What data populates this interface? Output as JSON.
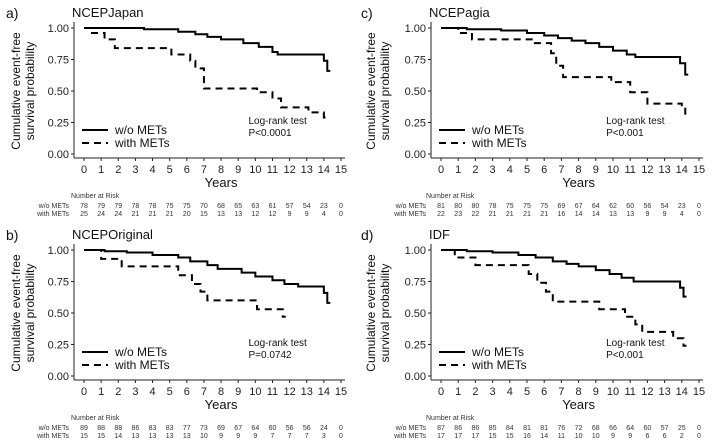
{
  "figure": {
    "x_axis_label": "Years",
    "y_axis_label_line1": "Cumulative event-free",
    "y_axis_label_line2": "survival probability",
    "risk_heading": "Number at Risk",
    "risk_row_labels": [
      "w/o METs",
      "with METs"
    ],
    "logrank_label": "Log-rank test",
    "legend": [
      {
        "label": "w/o METs",
        "style": "solid"
      },
      {
        "label": "with METs",
        "style": "dashed"
      }
    ]
  },
  "chart_data": [
    {
      "type": "line",
      "panel_label": "a)",
      "title": "NCEPJapan",
      "xlim": [
        0,
        15
      ],
      "ylim": [
        0,
        1
      ],
      "x_ticks": [
        0,
        1,
        2,
        3,
        4,
        5,
        6,
        7,
        8,
        9,
        10,
        11,
        12,
        13,
        14,
        15
      ],
      "y_ticks": [
        "0.00",
        "0.25",
        "0.50",
        "0.75",
        "1.00"
      ],
      "pvalue": "P<0.0001",
      "series": [
        {
          "name": "w/o METs",
          "style": "solid",
          "steps": [
            [
              0,
              1.0
            ],
            [
              3.5,
              0.99
            ],
            [
              5.5,
              0.97
            ],
            [
              6.5,
              0.95
            ],
            [
              7.2,
              0.93
            ],
            [
              8.0,
              0.91
            ],
            [
              9.3,
              0.88
            ],
            [
              10.2,
              0.85
            ],
            [
              11.0,
              0.81
            ],
            [
              11.3,
              0.79
            ],
            [
              14.0,
              0.74
            ],
            [
              14.2,
              0.66
            ]
          ]
        },
        {
          "name": "with METs",
          "style": "dashed",
          "steps": [
            [
              0,
              1.0
            ],
            [
              0.4,
              0.96
            ],
            [
              1.2,
              0.91
            ],
            [
              1.8,
              0.84
            ],
            [
              5.1,
              0.79
            ],
            [
              6.2,
              0.74
            ],
            [
              6.5,
              0.68
            ],
            [
              7.0,
              0.52
            ],
            [
              10.1,
              0.49
            ],
            [
              11.0,
              0.44
            ],
            [
              11.5,
              0.37
            ],
            [
              13.1,
              0.33
            ],
            [
              14.0,
              0.29
            ]
          ]
        }
      ],
      "risk": {
        "w/o METs": [
          "78",
          "79",
          "79",
          "78",
          "78",
          "75",
          "75",
          "70",
          "68",
          "65",
          "63",
          "61",
          "57",
          "54",
          "23",
          "0"
        ],
        "with METs": [
          "25",
          "24",
          "24",
          "21",
          "21",
          "21",
          "20",
          "15",
          "13",
          "13",
          "12",
          "12",
          "9",
          "9",
          "4",
          "0"
        ]
      }
    },
    {
      "type": "line",
      "panel_label": "c)",
      "title": "NCEPagia",
      "xlim": [
        0,
        15
      ],
      "ylim": [
        0,
        1
      ],
      "x_ticks": [
        0,
        1,
        2,
        3,
        4,
        5,
        6,
        7,
        8,
        9,
        10,
        11,
        12,
        13,
        14,
        15
      ],
      "y_ticks": [
        "0.00",
        "0.25",
        "0.50",
        "0.75",
        "1.00"
      ],
      "pvalue": "P<0.001",
      "series": [
        {
          "name": "w/o METs",
          "style": "solid",
          "steps": [
            [
              0,
              1.0
            ],
            [
              1.5,
              0.99
            ],
            [
              3.5,
              0.98
            ],
            [
              5.0,
              0.96
            ],
            [
              6.0,
              0.94
            ],
            [
              6.8,
              0.92
            ],
            [
              7.6,
              0.9
            ],
            [
              8.4,
              0.88
            ],
            [
              9.2,
              0.85
            ],
            [
              10.0,
              0.82
            ],
            [
              10.8,
              0.79
            ],
            [
              11.3,
              0.77
            ],
            [
              13.9,
              0.72
            ],
            [
              14.2,
              0.63
            ]
          ]
        },
        {
          "name": "with METs",
          "style": "dashed",
          "steps": [
            [
              0,
              1.0
            ],
            [
              1.0,
              0.96
            ],
            [
              1.8,
              0.91
            ],
            [
              5.4,
              0.88
            ],
            [
              6.4,
              0.8
            ],
            [
              6.7,
              0.7
            ],
            [
              7.1,
              0.61
            ],
            [
              9.9,
              0.57
            ],
            [
              11.0,
              0.49
            ],
            [
              12.0,
              0.4
            ],
            [
              14.0,
              0.36
            ],
            [
              14.2,
              0.32
            ]
          ]
        }
      ],
      "risk": {
        "w/o METs": [
          "81",
          "80",
          "80",
          "78",
          "75",
          "75",
          "75",
          "69",
          "67",
          "64",
          "62",
          "60",
          "56",
          "54",
          "23",
          "0"
        ],
        "with METs": [
          "22",
          "23",
          "22",
          "21",
          "21",
          "21",
          "21",
          "16",
          "14",
          "14",
          "13",
          "13",
          "9",
          "9",
          "4",
          "0"
        ]
      }
    },
    {
      "type": "line",
      "panel_label": "b)",
      "title": "NCEPOriginal",
      "xlim": [
        0,
        15
      ],
      "ylim": [
        0,
        1
      ],
      "x_ticks": [
        0,
        1,
        2,
        3,
        4,
        5,
        6,
        7,
        8,
        9,
        10,
        11,
        12,
        13,
        14,
        15
      ],
      "y_ticks": [
        "0.00",
        "0.25",
        "0.50",
        "0.75",
        "1.00"
      ],
      "pvalue": "P=0.0742",
      "series": [
        {
          "name": "w/o METs",
          "style": "solid",
          "steps": [
            [
              0,
              1.0
            ],
            [
              1.2,
              0.99
            ],
            [
              2.5,
              0.98
            ],
            [
              4.0,
              0.96
            ],
            [
              5.5,
              0.94
            ],
            [
              6.2,
              0.91
            ],
            [
              7.2,
              0.88
            ],
            [
              7.8,
              0.85
            ],
            [
              9.2,
              0.82
            ],
            [
              10.0,
              0.79
            ],
            [
              11.0,
              0.76
            ],
            [
              11.7,
              0.73
            ],
            [
              12.5,
              0.71
            ],
            [
              14.0,
              0.66
            ],
            [
              14.2,
              0.58
            ]
          ]
        },
        {
          "name": "with METs",
          "style": "dashed",
          "steps": [
            [
              0,
              1.0
            ],
            [
              1.0,
              0.93
            ],
            [
              2.2,
              0.87
            ],
            [
              5.5,
              0.8
            ],
            [
              6.3,
              0.73
            ],
            [
              6.8,
              0.67
            ],
            [
              7.2,
              0.6
            ],
            [
              10.1,
              0.53
            ],
            [
              11.6,
              0.47
            ]
          ]
        }
      ],
      "risk": {
        "w/o METs": [
          "89",
          "88",
          "88",
          "86",
          "83",
          "83",
          "77",
          "73",
          "69",
          "67",
          "64",
          "60",
          "56",
          "56",
          "24",
          "0"
        ],
        "with METs": [
          "15",
          "15",
          "14",
          "13",
          "13",
          "13",
          "13",
          "10",
          "9",
          "9",
          "9",
          "7",
          "7",
          "7",
          "3",
          "0"
        ]
      }
    },
    {
      "type": "line",
      "panel_label": "d)",
      "title": "IDF",
      "xlim": [
        0,
        15
      ],
      "ylim": [
        0,
        1
      ],
      "x_ticks": [
        0,
        1,
        2,
        3,
        4,
        5,
        6,
        7,
        8,
        9,
        10,
        11,
        12,
        13,
        14,
        15
      ],
      "y_ticks": [
        "0.00",
        "0.25",
        "0.50",
        "0.75",
        "1.00"
      ],
      "pvalue": "P<0.001",
      "series": [
        {
          "name": "w/o METs",
          "style": "solid",
          "steps": [
            [
              0,
              1.0
            ],
            [
              1.5,
              0.99
            ],
            [
              3.0,
              0.98
            ],
            [
              4.5,
              0.96
            ],
            [
              5.5,
              0.94
            ],
            [
              6.5,
              0.91
            ],
            [
              7.3,
              0.89
            ],
            [
              8.0,
              0.87
            ],
            [
              9.0,
              0.84
            ],
            [
              9.8,
              0.81
            ],
            [
              10.5,
              0.78
            ],
            [
              11.2,
              0.75
            ],
            [
              13.9,
              0.7
            ],
            [
              14.1,
              0.63
            ]
          ]
        },
        {
          "name": "with METs",
          "style": "dashed",
          "steps": [
            [
              0,
              1.0
            ],
            [
              0.8,
              0.94
            ],
            [
              2.0,
              0.88
            ],
            [
              5.1,
              0.81
            ],
            [
              5.6,
              0.74
            ],
            [
              6.1,
              0.67
            ],
            [
              6.5,
              0.59
            ],
            [
              9.2,
              0.53
            ],
            [
              10.7,
              0.47
            ],
            [
              11.3,
              0.41
            ],
            [
              11.7,
              0.35
            ],
            [
              13.5,
              0.3
            ],
            [
              14.1,
              0.24
            ]
          ]
        }
      ],
      "risk": {
        "w/o METs": [
          "87",
          "86",
          "86",
          "85",
          "84",
          "81",
          "81",
          "76",
          "72",
          "68",
          "66",
          "64",
          "60",
          "57",
          "25",
          "0"
        ],
        "with METs": [
          "17",
          "17",
          "17",
          "15",
          "15",
          "16",
          "14",
          "11",
          "10",
          "10",
          "9",
          "9",
          "6",
          "6",
          "2",
          "0"
        ]
      }
    }
  ]
}
